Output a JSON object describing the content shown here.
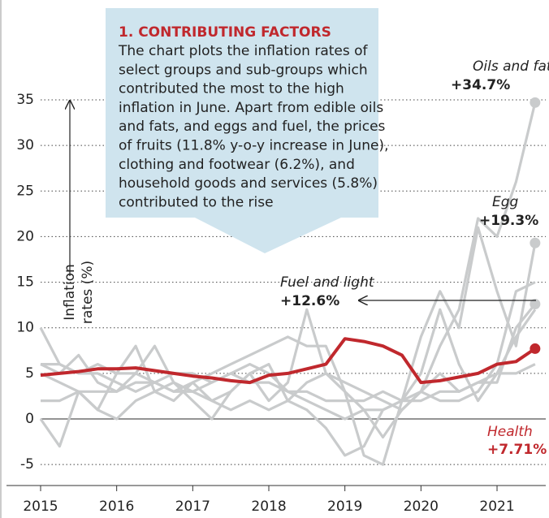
{
  "chart_data": {
    "type": "line",
    "box_title": "1. CONTRIBUTING FACTORS",
    "box_text": [
      "The chart plots the inflation rates of",
      "select groups and sub-groups which",
      "contributed the most to the high",
      "inflation in June. Apart from edible oils",
      "and fats, and eggs and fuel, the prices",
      "of fruits (11.8% y-o-y increase in June),",
      "clothing and footwear (6.2%), and",
      "household goods and services (5.8%)",
      "contributed to the rise"
    ],
    "y_label": [
      "Inflation",
      "rates (%)"
    ],
    "x": [
      2015,
      2015.25,
      2015.5,
      2015.75,
      2016,
      2016.25,
      2016.5,
      2016.75,
      2017,
      2017.25,
      2017.5,
      2017.75,
      2018,
      2018.25,
      2018.5,
      2018.75,
      2019,
      2019.25,
      2019.5,
      2019.75,
      2020,
      2020.25,
      2020.5,
      2020.75,
      2021,
      2021.25,
      2021.5
    ],
    "xlim": [
      2015,
      2021.65
    ],
    "xticks": [
      2015,
      2016,
      2017,
      2018,
      2019,
      2020,
      2021
    ],
    "ylim": [
      -7.3,
      37
    ],
    "yticks": [
      -5,
      0,
      5,
      10,
      15,
      20,
      25,
      30,
      35
    ],
    "grid": true,
    "series": [
      {
        "color": "#c9cbcc",
        "values": [
          0,
          -3,
          3,
          1,
          5,
          8,
          3,
          2,
          4,
          2,
          3,
          5,
          6,
          2,
          1,
          -1,
          -4,
          -3,
          1,
          2,
          5,
          12,
          6,
          2,
          5,
          9,
          12
        ]
      },
      {
        "color": "#c9cbcc",
        "values": [
          6,
          6,
          5,
          6,
          5,
          5,
          4,
          5,
          5,
          4,
          5,
          4,
          4,
          3,
          3,
          2,
          2,
          2,
          3,
          2,
          2,
          3,
          3,
          4,
          5,
          5,
          6
        ]
      },
      {
        "color": "#c9cbcc",
        "values": [
          2,
          2,
          3,
          3,
          3,
          4,
          4,
          3,
          3,
          4,
          5,
          6,
          5,
          3,
          2,
          1,
          0,
          1,
          1,
          2,
          3,
          2,
          2,
          3,
          6,
          14,
          15
        ]
      },
      {
        "name": "Fuel and light",
        "color": "#c9cbcc",
        "values": [
          10,
          6,
          5,
          5,
          4,
          3,
          4,
          3,
          4,
          5,
          6,
          7,
          8,
          9,
          8,
          8,
          3,
          1,
          -2,
          1,
          3,
          5,
          3,
          4,
          4,
          10,
          12.6
        ],
        "value_label": "+12.6%"
      },
      {
        "name": "Egg",
        "color": "#c9cbcc",
        "values": [
          6,
          5,
          7,
          4,
          3,
          5,
          8,
          4,
          2,
          0,
          3,
          5,
          2,
          4,
          12,
          5,
          3,
          -4,
          -5,
          2,
          9,
          14,
          10,
          21,
          14,
          8,
          19.3
        ],
        "value_label": "+19.3%"
      },
      {
        "name": "Oils and fats",
        "color": "#c9cbcc",
        "values": [
          5,
          4,
          3,
          1,
          0,
          2,
          3,
          4,
          3,
          2,
          1,
          2,
          1,
          2,
          4,
          5,
          4,
          3,
          2,
          1,
          3,
          8,
          12,
          22,
          20,
          26,
          34.7
        ],
        "value_label": "+34.7%"
      },
      {
        "name": "Health",
        "color": "#c0282d",
        "values": [
          4.8,
          5.0,
          5.2,
          5.5,
          5.5,
          5.6,
          5.3,
          5.0,
          4.7,
          4.5,
          4.2,
          4.0,
          4.8,
          5.0,
          5.5,
          6.0,
          8.8,
          8.5,
          8.0,
          7.0,
          4.0,
          4.2,
          4.6,
          5.0,
          6.0,
          6.3,
          7.71
        ],
        "value_label": "+7.71%"
      }
    ]
  }
}
